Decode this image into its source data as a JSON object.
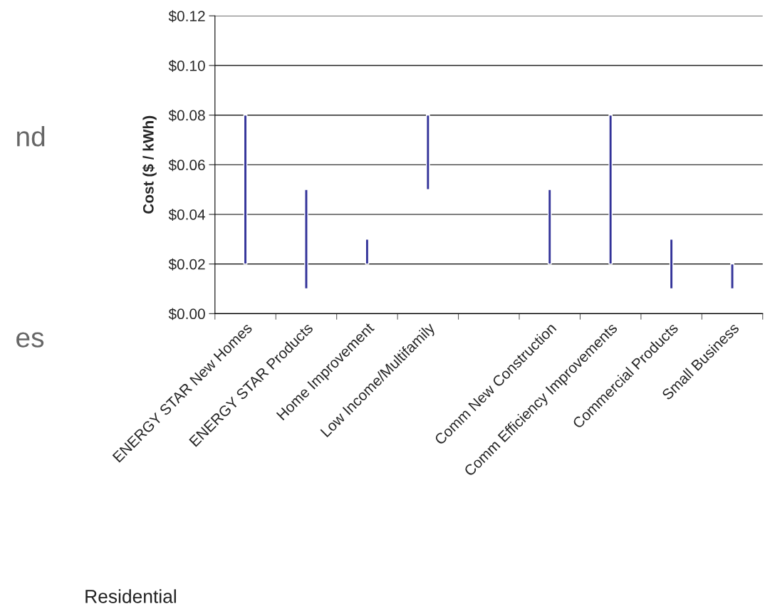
{
  "chart_data": {
    "type": "bar",
    "ylabel": "Cost ($ / kWh)",
    "categories": [
      "ENERGY STAR New Homes",
      "ENERGY STAR Products",
      "Home Improvement",
      "Low Income/Multifamily",
      null,
      "Comm New Construction",
      "Comm Efficiency Improvements",
      "Commercial Products",
      "Small Business"
    ],
    "base": [
      0.02,
      0.01,
      0.02,
      0.05,
      null,
      0.02,
      0.02,
      0.01,
      0.01
    ],
    "values": [
      0.06,
      0.04,
      0.01,
      0.03,
      null,
      0.03,
      0.06,
      0.02,
      0.01
    ],
    "color": "#333399",
    "ylim": [
      0,
      0.12
    ],
    "yticks": [
      {
        "value": 0,
        "label": "$0.00"
      },
      {
        "value": 0.02,
        "label": "$0.02"
      },
      {
        "value": 0.04,
        "label": "$0.04"
      },
      {
        "value": 0.06,
        "label": "$0.06"
      },
      {
        "value": 0.08,
        "label": "$0.08"
      },
      {
        "value": 0.1,
        "label": "$0.10"
      },
      {
        "value": 0.12,
        "label": "$0.12"
      }
    ],
    "grid": "y",
    "annotations": [
      "nd",
      "es",
      "Residential"
    ]
  }
}
